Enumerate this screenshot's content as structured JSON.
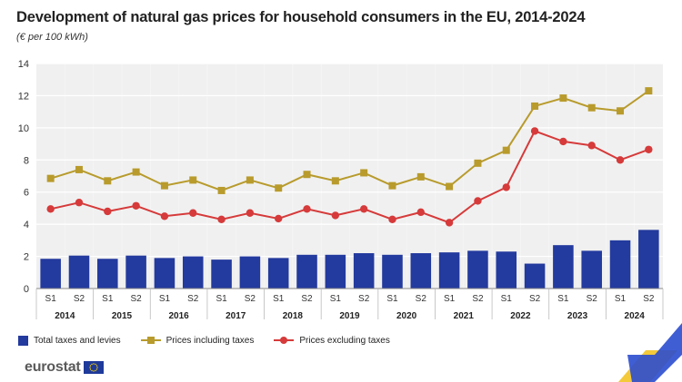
{
  "title": "Development of natural gas prices for household consumers in the EU, 2014-2024",
  "subtitle": "(€ per 100 kWh)",
  "logo_text": "eurostat",
  "colors": {
    "bars": "#233a9e",
    "incl": "#b89b2c",
    "excl": "#d63a3a",
    "plot_bg": "#f0f0f0",
    "grid": "#ffffff",
    "corner_blue": "#2b4ccf",
    "corner_yellow": "#f4c93a"
  },
  "legend": [
    {
      "label": "Total taxes and levies",
      "kind": "bar",
      "color": "#233a9e"
    },
    {
      "label": "Prices including taxes",
      "kind": "line-square",
      "color": "#b89b2c"
    },
    {
      "label": "Prices excluding taxes",
      "kind": "line-circle",
      "color": "#d63a3a"
    }
  ],
  "chart_data": {
    "type": "bar",
    "categories": [
      "S1",
      "S2",
      "S1",
      "S2",
      "S1",
      "S2",
      "S1",
      "S2",
      "S1",
      "S2",
      "S1",
      "S2",
      "S1",
      "S2",
      "S1",
      "S2",
      "S1",
      "S2",
      "S1",
      "S2",
      "S1",
      "S2"
    ],
    "years": [
      "2014",
      "2015",
      "2016",
      "2017",
      "2018",
      "2019",
      "2020",
      "2021",
      "2022",
      "2023",
      "2024"
    ],
    "ylim": [
      0,
      14
    ],
    "yticks": [
      0,
      2,
      4,
      6,
      8,
      10,
      12,
      14
    ],
    "grid": true,
    "legend_position": "bottom-left",
    "series": [
      {
        "name": "Total taxes and levies",
        "type": "bar",
        "values": [
          1.85,
          2.05,
          1.85,
          2.05,
          1.9,
          2.0,
          1.8,
          2.0,
          1.9,
          2.1,
          2.1,
          2.2,
          2.1,
          2.2,
          2.25,
          2.35,
          2.3,
          1.55,
          2.7,
          2.35,
          3.0,
          3.65
        ]
      },
      {
        "name": "Prices including taxes",
        "type": "line",
        "marker": "square",
        "values": [
          6.85,
          7.4,
          6.7,
          7.25,
          6.4,
          6.75,
          6.1,
          6.75,
          6.25,
          7.1,
          6.7,
          7.2,
          6.4,
          6.95,
          6.35,
          7.8,
          8.6,
          11.35,
          11.85,
          11.25,
          11.05,
          12.3
        ]
      },
      {
        "name": "Prices excluding taxes",
        "type": "line",
        "marker": "circle",
        "values": [
          4.95,
          5.35,
          4.8,
          5.15,
          4.5,
          4.7,
          4.3,
          4.7,
          4.35,
          4.95,
          4.55,
          4.95,
          4.3,
          4.75,
          4.1,
          5.45,
          6.3,
          9.8,
          9.15,
          8.9,
          8.0,
          8.65
        ]
      }
    ]
  }
}
